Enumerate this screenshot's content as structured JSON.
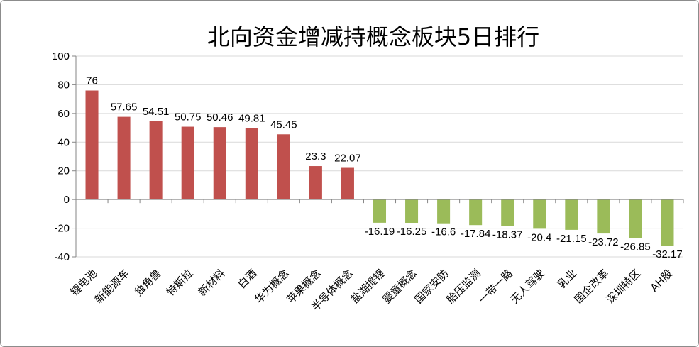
{
  "chart_data": {
    "type": "bar",
    "title": "北向资金增减持概念板块5日排行",
    "xlabel": "",
    "ylabel": "",
    "ylim": [
      -40,
      100
    ],
    "yticks": [
      -40,
      -20,
      0,
      20,
      40,
      60,
      80,
      100
    ],
    "grid": true,
    "legend": "none",
    "categories": [
      "锂电池",
      "新能源车",
      "独角兽",
      "特斯拉",
      "新材料",
      "白酒",
      "华为概念",
      "苹果概念",
      "半导体概念",
      "盐湖提锂",
      "婴童概念",
      "国家安防",
      "胎压监测",
      "一带一路",
      "无人驾驶",
      "乳业",
      "国企改革",
      "深圳特区",
      "AH股"
    ],
    "values": [
      76,
      57.65,
      54.51,
      50.75,
      50.46,
      49.81,
      45.45,
      23.3,
      22.07,
      -16.19,
      -16.25,
      -16.6,
      -17.84,
      -18.37,
      -20.4,
      -21.15,
      -23.72,
      -26.85,
      -32.17
    ],
    "value_labels": [
      "76",
      "57.65",
      "54.51",
      "50.75",
      "50.46",
      "49.81",
      "45.45",
      "23.3",
      "22.07",
      "-16.19",
      "-16.25",
      "-16.6",
      "-17.84",
      "-18.37",
      "-20.4",
      "-21.15",
      "-23.72",
      "-26.85",
      "-32.17"
    ],
    "colors": {
      "positive": "#c0504d",
      "negative": "#9bbb59",
      "grid": "#d9d9d9",
      "axis": "#868686"
    }
  }
}
